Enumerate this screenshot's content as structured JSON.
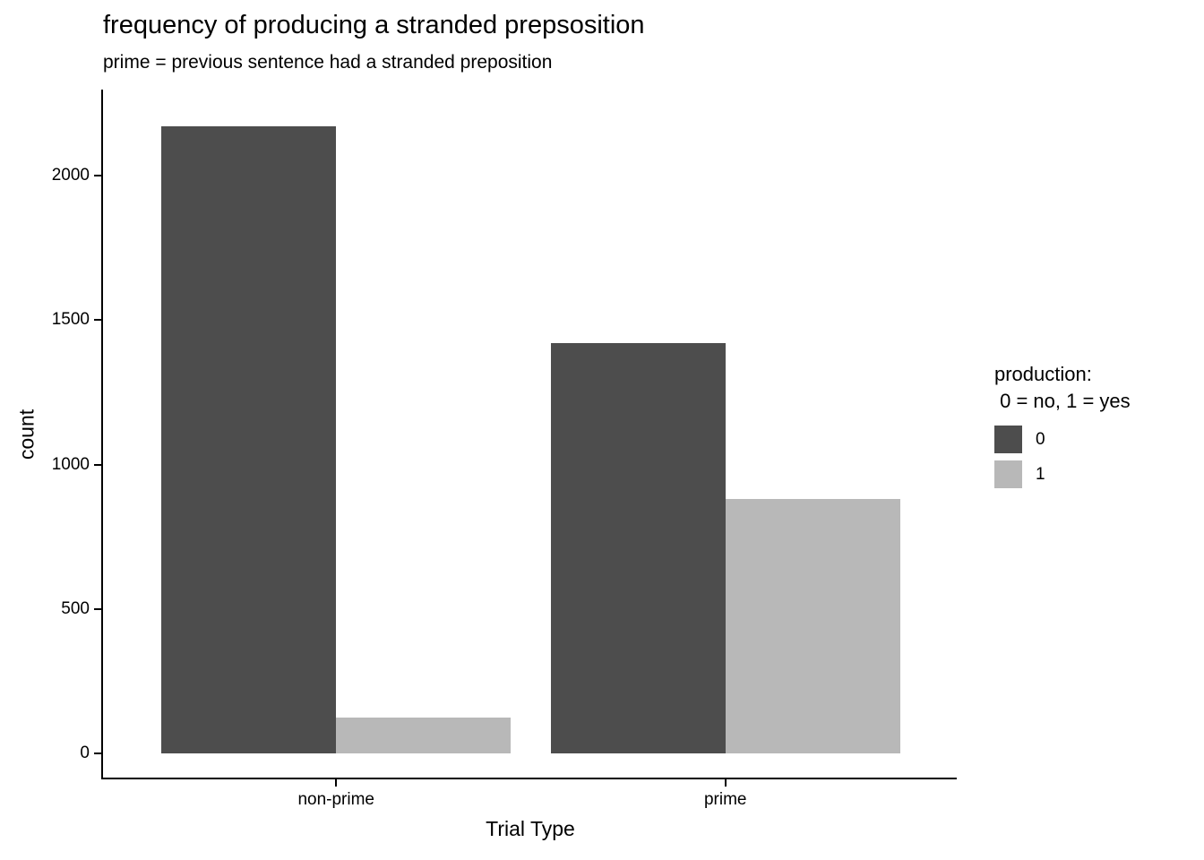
{
  "title": "frequency of producing a stranded prepsosition",
  "subtitle": "prime = previous sentence had a stranded preposition",
  "chart_data": {
    "type": "bar",
    "categories": [
      "non-prime",
      "prime"
    ],
    "series": [
      {
        "name": "0",
        "color": "#4d4d4d",
        "values": [
          2170,
          1420
        ]
      },
      {
        "name": "1",
        "color": "#b8b8b8",
        "values": [
          125,
          880
        ]
      }
    ],
    "title": "frequency of producing a stranded prepsosition",
    "subtitle": "prime = previous sentence had a stranded preposition",
    "xlabel": "Trial Type",
    "ylabel": "count",
    "yticks": [
      0,
      500,
      1000,
      1500,
      2000
    ],
    "ylim": [
      0,
      2300
    ],
    "grid": false,
    "legend": {
      "position": "right",
      "title_lines": [
        "production:",
        " 0 = no, 1 = yes"
      ],
      "entries": [
        {
          "label": "0",
          "color": "#4d4d4d"
        },
        {
          "label": "1",
          "color": "#b8b8b8"
        }
      ]
    },
    "colors": {
      "axis": "#000000",
      "background": "#ffffff"
    }
  }
}
